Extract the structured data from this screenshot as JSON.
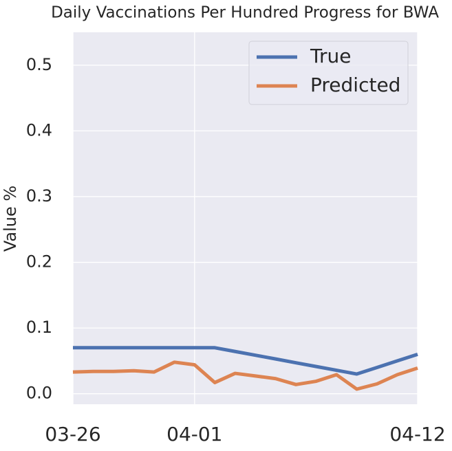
{
  "chart_data": {
    "type": "line",
    "title": "Daily Vaccinations Per Hundred Progress for BWA",
    "y_label": "Value %",
    "x": [
      "03-26",
      "03-27",
      "03-28",
      "03-29",
      "03-30",
      "03-31",
      "04-01",
      "04-02",
      "04-03",
      "04-04",
      "04-05",
      "04-06",
      "04-07",
      "04-08",
      "04-09",
      "04-10",
      "04-11",
      "04-12"
    ],
    "xticks": [
      "03-26",
      "04-01",
      "04-12"
    ],
    "series": [
      {
        "name": "True",
        "color": "#4c72b0",
        "values": [
          0.07,
          0.07,
          0.07,
          0.07,
          0.07,
          0.07,
          0.07,
          0.07,
          0.0643,
          0.0586,
          0.0529,
          0.0471,
          0.0414,
          0.0357,
          0.03,
          0.04,
          0.05,
          0.06
        ]
      },
      {
        "name": "Predicted",
        "color": "#dd8452",
        "values": [
          0.033,
          0.034,
          0.034,
          0.035,
          0.033,
          0.048,
          0.044,
          0.017,
          0.031,
          0.027,
          0.023,
          0.014,
          0.019,
          0.029,
          0.007,
          0.015,
          0.029,
          0.039
        ]
      }
    ],
    "ylim": [
      -0.016,
      0.55
    ],
    "yticks": [
      {
        "value": 0,
        "label": "0.0"
      },
      0.1,
      0.2,
      0.3,
      0.4,
      0.5
    ],
    "grid": true,
    "legend": "upper right"
  }
}
